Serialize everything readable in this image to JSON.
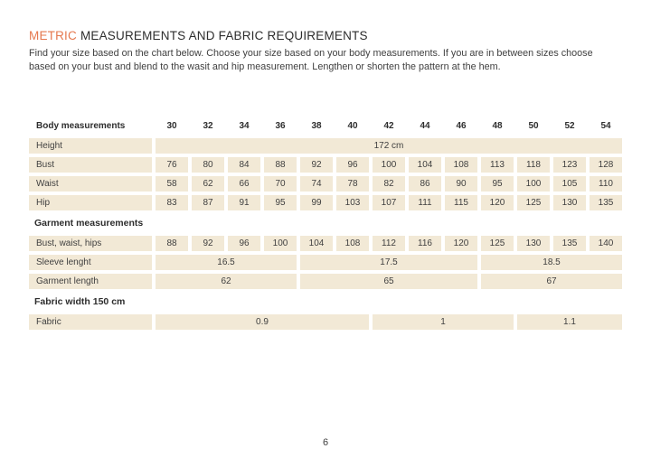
{
  "colors": {
    "accent": "#E5784E",
    "cell_background": "#F2E9D6",
    "text": "#3F3F3F",
    "heading": "#2D2D2D"
  },
  "header": {
    "title_highlight": "METRIC",
    "title_rest": "MEASUREMENTS AND FABRIC REQUIREMENTS",
    "intro_line1": "Find your size based on the chart below. Choose your size based on your body measurements. If you are in between sizes choose",
    "intro_line2": "based on your bust and blend to the wasit and hip measurement. Lengthen or shorten the pattern at the hem."
  },
  "table": {
    "sizes": [
      "30",
      "32",
      "34",
      "36",
      "38",
      "40",
      "42",
      "44",
      "46",
      "48",
      "50",
      "52",
      "54"
    ],
    "rows": [
      {
        "kind": "sizes-header",
        "label": "Body measurements"
      },
      {
        "kind": "data",
        "label": "Height",
        "cells": [
          {
            "v": "172 cm",
            "span": 13
          }
        ]
      },
      {
        "kind": "data",
        "label": "Bust",
        "cells": [
          {
            "v": "76",
            "span": 1
          },
          {
            "v": "80",
            "span": 1
          },
          {
            "v": "84",
            "span": 1
          },
          {
            "v": "88",
            "span": 1
          },
          {
            "v": "92",
            "span": 1
          },
          {
            "v": "96",
            "span": 1
          },
          {
            "v": "100",
            "span": 1
          },
          {
            "v": "104",
            "span": 1
          },
          {
            "v": "108",
            "span": 1
          },
          {
            "v": "113",
            "span": 1
          },
          {
            "v": "118",
            "span": 1
          },
          {
            "v": "123",
            "span": 1
          },
          {
            "v": "128",
            "span": 1
          }
        ]
      },
      {
        "kind": "data",
        "label": "Waist",
        "cells": [
          {
            "v": "58",
            "span": 1
          },
          {
            "v": "62",
            "span": 1
          },
          {
            "v": "66",
            "span": 1
          },
          {
            "v": "70",
            "span": 1
          },
          {
            "v": "74",
            "span": 1
          },
          {
            "v": "78",
            "span": 1
          },
          {
            "v": "82",
            "span": 1
          },
          {
            "v": "86",
            "span": 1
          },
          {
            "v": "90",
            "span": 1
          },
          {
            "v": "95",
            "span": 1
          },
          {
            "v": "100",
            "span": 1
          },
          {
            "v": "105",
            "span": 1
          },
          {
            "v": "110",
            "span": 1
          }
        ]
      },
      {
        "kind": "data",
        "label": "Hip",
        "cells": [
          {
            "v": "83",
            "span": 1
          },
          {
            "v": "87",
            "span": 1
          },
          {
            "v": "91",
            "span": 1
          },
          {
            "v": "95",
            "span": 1
          },
          {
            "v": "99",
            "span": 1
          },
          {
            "v": "103",
            "span": 1
          },
          {
            "v": "107",
            "span": 1
          },
          {
            "v": "111",
            "span": 1
          },
          {
            "v": "115",
            "span": 1
          },
          {
            "v": "120",
            "span": 1
          },
          {
            "v": "125",
            "span": 1
          },
          {
            "v": "130",
            "span": 1
          },
          {
            "v": "135",
            "span": 1
          }
        ]
      },
      {
        "kind": "section",
        "label": "Garment measurements"
      },
      {
        "kind": "data",
        "label": "Bust, waist, hips",
        "cells": [
          {
            "v": "88",
            "span": 1
          },
          {
            "v": "92",
            "span": 1
          },
          {
            "v": "96",
            "span": 1
          },
          {
            "v": "100",
            "span": 1
          },
          {
            "v": "104",
            "span": 1
          },
          {
            "v": "108",
            "span": 1
          },
          {
            "v": "112",
            "span": 1
          },
          {
            "v": "116",
            "span": 1
          },
          {
            "v": "120",
            "span": 1
          },
          {
            "v": "125",
            "span": 1
          },
          {
            "v": "130",
            "span": 1
          },
          {
            "v": "135",
            "span": 1
          },
          {
            "v": "140",
            "span": 1
          }
        ]
      },
      {
        "kind": "data",
        "label": "Sleeve lenght",
        "cells": [
          {
            "v": "16.5",
            "span": 4
          },
          {
            "v": "17.5",
            "span": 5
          },
          {
            "v": "18.5",
            "span": 4
          }
        ]
      },
      {
        "kind": "data",
        "label": "Garment length",
        "cells": [
          {
            "v": "62",
            "span": 4
          },
          {
            "v": "65",
            "span": 5
          },
          {
            "v": "67",
            "span": 4
          }
        ]
      },
      {
        "kind": "section",
        "label": "Fabric width 150 cm"
      },
      {
        "kind": "data",
        "label": "Fabric",
        "cells": [
          {
            "v": "0.9",
            "span": 6
          },
          {
            "v": "1",
            "span": 4
          },
          {
            "v": "1.1",
            "span": 3
          }
        ]
      }
    ]
  },
  "footer": {
    "page_number": "6"
  }
}
